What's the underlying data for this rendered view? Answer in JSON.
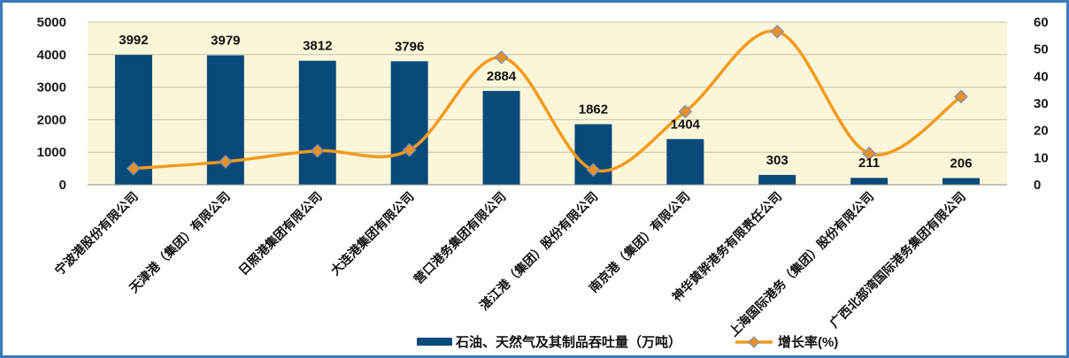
{
  "chart_data": {
    "type": "bar",
    "categories": [
      "宁波港股份有限公司",
      "天津港（集团）有限公司",
      "日照港集团有限公司",
      "大连港集团有限公司",
      "营口港务集团有限公司",
      "湛江港（集团）股份有限公司",
      "南京港（集团）有限公司",
      "神华黄骅港务有限责任公司",
      "上海国际港务（集团）股份有限公司",
      "广西北部湾国际港务集团有限公司"
    ],
    "series": [
      {
        "name": "石油、天然气及其制品吞吐量（万吨）",
        "type": "bar",
        "axis": "left",
        "color": "#0a4a7a",
        "values": [
          3992,
          3979,
          3812,
          3796,
          2884,
          1862,
          1404,
          303,
          211,
          206
        ],
        "labels": [
          "3992",
          "3979",
          "3812",
          "3796",
          "2884",
          "1862",
          "1404",
          "303",
          "211",
          "206"
        ]
      },
      {
        "name": "增长率(%)",
        "type": "line",
        "axis": "right",
        "color": "#f39a1c",
        "marker_color": "#e8902a",
        "values": [
          6,
          8.5,
          12.5,
          12.8,
          47,
          5.5,
          27,
          56.5,
          11.5,
          32.5
        ]
      }
    ],
    "y_left": {
      "lim": [
        0,
        5000
      ],
      "ticks": [
        "0",
        "1000",
        "2000",
        "3000",
        "4000",
        "5000"
      ]
    },
    "y_right": {
      "lim": [
        0,
        60
      ],
      "ticks": [
        "0",
        "10",
        "20",
        "30",
        "40",
        "50",
        "60"
      ]
    },
    "plot_background": "#fbf6d9",
    "grid": true,
    "legend": "bottom"
  }
}
